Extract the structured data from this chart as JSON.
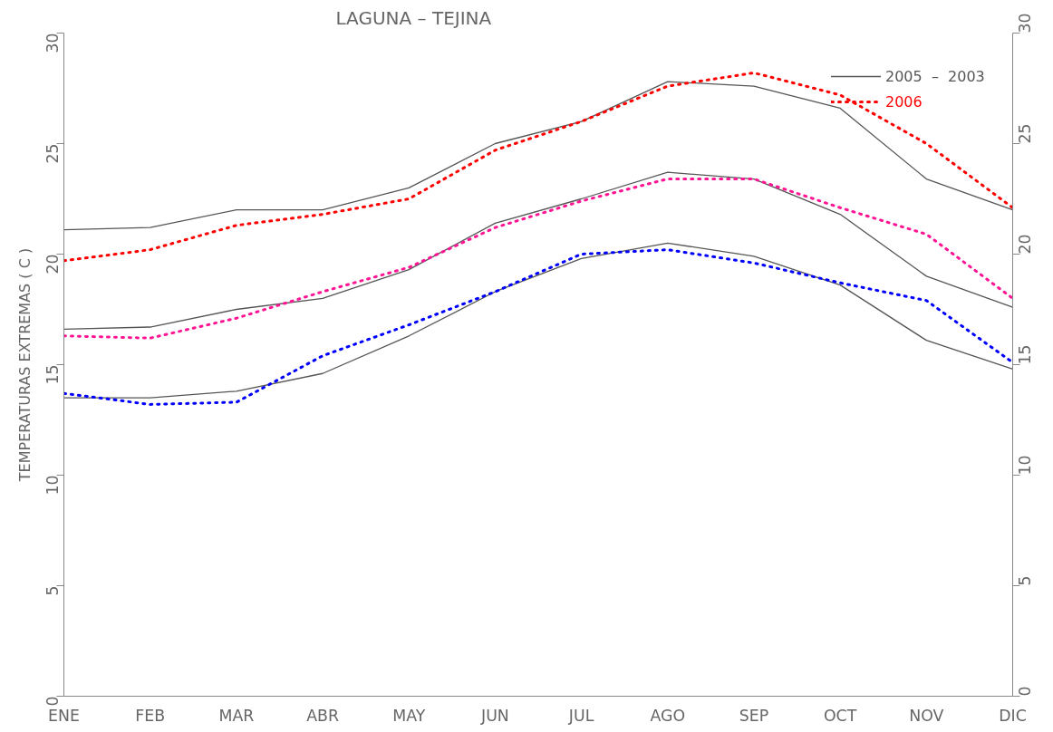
{
  "chart_data": {
    "type": "line",
    "title": "LAGUNA  –  TEJINA",
    "ylabel": "TEMPERATURAS EXTREMAS ( C )",
    "categories": [
      "ENE",
      "FEB",
      "MAR",
      "ABR",
      "MAY",
      "JUN",
      "JUL",
      "AGO",
      "SEP",
      "OCT",
      "NOV",
      "DIC"
    ],
    "series": [
      {
        "name": "2005  –  2003",
        "color": "#555555",
        "line_style": "solid",
        "values": [
          21.1,
          21.2,
          22.0,
          22.0,
          23.0,
          25.0,
          26.0,
          27.8,
          27.6,
          26.6,
          23.4,
          22.0
        ]
      },
      {
        "name": "2006",
        "color": "#ff0000",
        "line_style": "dotted",
        "values": [
          19.7,
          20.2,
          21.3,
          21.8,
          22.5,
          24.7,
          26.0,
          27.6,
          28.2,
          27.2,
          25.0,
          22.1
        ]
      },
      {
        "color": "#555555",
        "line_style": "solid",
        "values": [
          16.6,
          16.7,
          17.5,
          18.0,
          19.3,
          21.4,
          22.5,
          23.7,
          23.4,
          21.8,
          19.0,
          17.6
        ]
      },
      {
        "color": "#ff1493",
        "line_style": "dotted",
        "values": [
          16.3,
          16.2,
          17.1,
          18.3,
          19.4,
          21.2,
          22.4,
          23.4,
          23.4,
          22.1,
          20.9,
          18.0
        ]
      },
      {
        "color": "#555555",
        "line_style": "solid",
        "values": [
          13.5,
          13.5,
          13.8,
          14.6,
          16.3,
          18.3,
          19.8,
          20.5,
          19.9,
          18.6,
          16.1,
          14.8
        ]
      },
      {
        "color": "#0000ff",
        "line_style": "dotted",
        "values": [
          13.7,
          13.2,
          13.3,
          15.4,
          16.8,
          18.3,
          20.0,
          20.2,
          19.6,
          18.7,
          17.9,
          15.1
        ]
      }
    ],
    "ylim": [
      0,
      30
    ],
    "yticks": [
      0,
      5,
      10,
      15,
      20,
      25,
      30
    ],
    "y2lim": [
      0,
      30
    ],
    "y2ticks": [
      0,
      5,
      10,
      15,
      20,
      25,
      30
    ],
    "grid": false,
    "legend": "top right"
  }
}
